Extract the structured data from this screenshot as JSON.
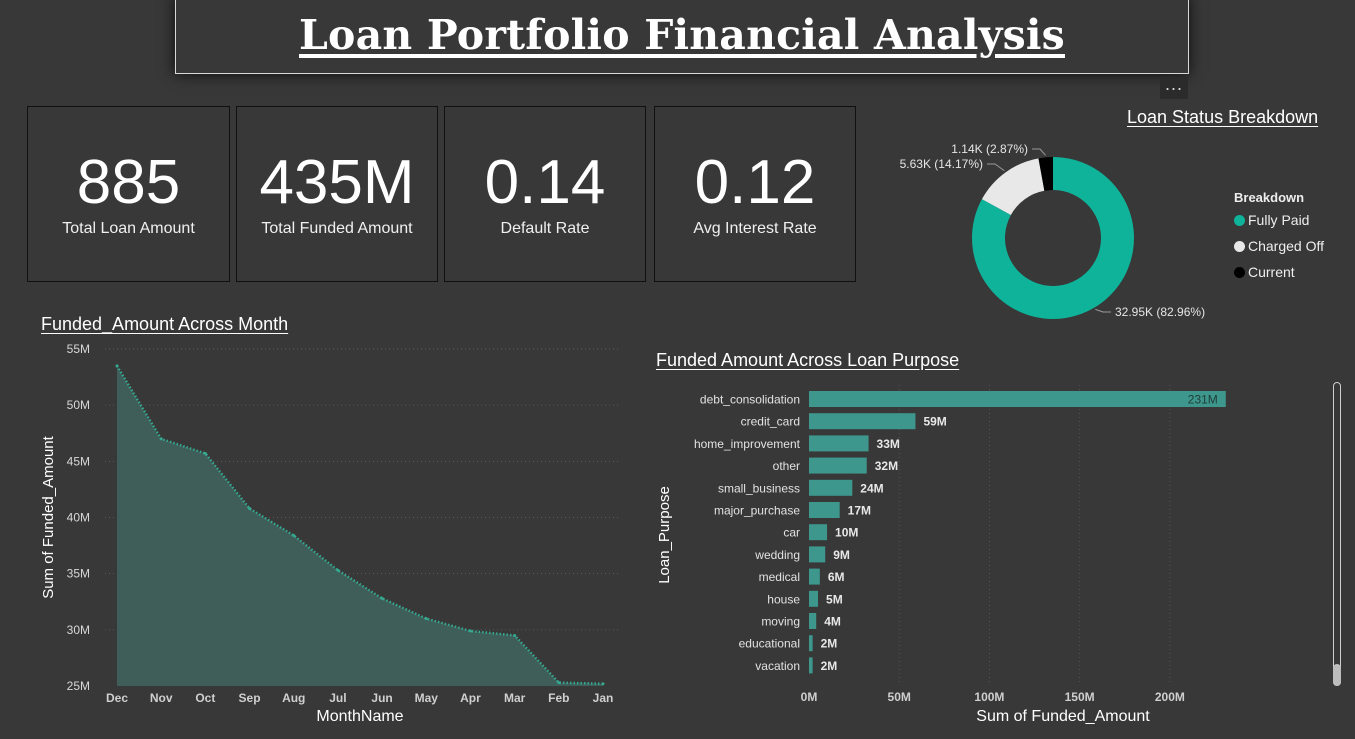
{
  "dashboard": {
    "title": "Loan Portfolio Financial Analysis",
    "more_options_label": "..."
  },
  "kpis": [
    {
      "value": "885",
      "label": "Total Loan Amount"
    },
    {
      "value": "435M",
      "label": "Total Funded Amount"
    },
    {
      "value": "0.14",
      "label": "Default Rate"
    },
    {
      "value": "0.12",
      "label": "Avg Interest Rate"
    }
  ],
  "colors": {
    "teal": "#0fb39a",
    "teal_bar": "#3e978c",
    "area_fill": "#3f5e5a",
    "area_line": "#35a890",
    "charged_off": "#e8e8e8",
    "current": "#000000"
  },
  "chart_data": [
    {
      "type": "pie",
      "variant": "donut",
      "title": "Loan Status Breakdown",
      "legend_title": "Breakdown",
      "legend_position": "right",
      "slices": [
        {
          "name": "Fully Paid",
          "value": 32.95,
          "percent": 82.96,
          "label": "32.95K (82.96%)",
          "color": "#0fb39a"
        },
        {
          "name": "Charged Off",
          "value": 5.63,
          "percent": 14.17,
          "label": "5.63K (14.17%)",
          "color": "#e8e8e8"
        },
        {
          "name": "Current",
          "value": 1.14,
          "percent": 2.87,
          "label": "1.14K (2.87%)",
          "color": "#000000"
        }
      ]
    },
    {
      "type": "area",
      "title": "Funded_Amount Across Month",
      "xlabel": "MonthName",
      "ylabel": "Sum of Funded_Amount",
      "categories": [
        "Dec",
        "Nov",
        "Oct",
        "Sep",
        "Aug",
        "Jul",
        "Jun",
        "May",
        "Apr",
        "Mar",
        "Feb",
        "Jan"
      ],
      "values": [
        53.5,
        47.0,
        45.7,
        40.8,
        38.4,
        35.3,
        32.8,
        31.0,
        29.9,
        29.5,
        25.3,
        25.2
      ],
      "ylim": [
        25,
        55
      ],
      "yticks": [
        25,
        30,
        35,
        40,
        45,
        50,
        55
      ],
      "ytick_labels": [
        "25M",
        "30M",
        "35M",
        "40M",
        "45M",
        "50M",
        "55M"
      ],
      "grid": true
    },
    {
      "type": "bar",
      "orientation": "horizontal",
      "title": "Funded Amount Across Loan Purpose",
      "xlabel": "Sum of Funded_Amount",
      "ylabel": "Loan_Purpose",
      "categories": [
        "debt_consolidation",
        "credit_card",
        "home_improvement",
        "other",
        "small_business",
        "major_purchase",
        "car",
        "wedding",
        "medical",
        "house",
        "moving",
        "educational",
        "vacation"
      ],
      "values": [
        231,
        59,
        33,
        32,
        24,
        17,
        10,
        9,
        6,
        5,
        4,
        2,
        2
      ],
      "data_labels": [
        "231M",
        "59M",
        "33M",
        "32M",
        "24M",
        "17M",
        "10M",
        "9M",
        "6M",
        "5M",
        "4M",
        "2M",
        "2M"
      ],
      "xlim": [
        0,
        230
      ],
      "xticks": [
        0,
        50,
        100,
        150,
        200
      ],
      "xtick_labels": [
        "0M",
        "50M",
        "100M",
        "150M",
        "200M"
      ],
      "grid": true
    }
  ]
}
